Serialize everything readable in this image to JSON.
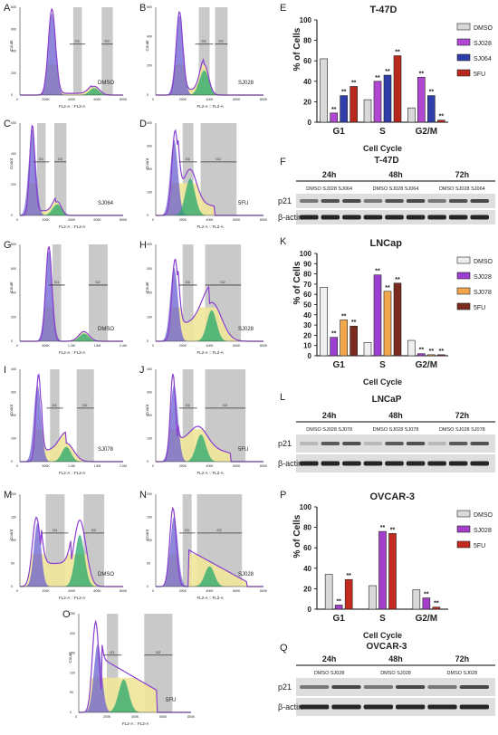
{
  "panels": {
    "A": {
      "letter": "A",
      "sample": "DMSO",
      "xlabel": "FL2-A :: FL2-A",
      "ylabel": "Count",
      "gate1": "G1",
      "gate2": "G2",
      "xticks": [
        "0",
        "200K",
        "400K",
        "600K",
        "800K"
      ],
      "yticks": [
        "0",
        "200",
        "400",
        "600",
        "800"
      ]
    },
    "B": {
      "letter": "B",
      "sample": "SJ028",
      "xlabel": "FL2-A :: FL2-A",
      "ylabel": "Count",
      "gate1": "G1",
      "gate2": "G2",
      "xticks": [
        "0",
        "200K",
        "400K",
        "600K",
        "800K"
      ],
      "yticks": [
        "0",
        "200",
        "400",
        "600"
      ]
    },
    "C": {
      "letter": "C",
      "sample": "SJ064",
      "xlabel": "FL2-A :: FL2-A",
      "ylabel": "Count",
      "gate1": "G1",
      "gate2": "G2",
      "xticks": [
        "0",
        "200K",
        "400K",
        "600K",
        "800K"
      ],
      "yticks": [
        "0",
        "200",
        "400",
        "600"
      ]
    },
    "D": {
      "letter": "D",
      "sample": "5FU",
      "xlabel": "FL2-A :: FL2-A",
      "ylabel": "Count",
      "gate1": "G1",
      "gate2": "G2",
      "xticks": [
        "0",
        "200K",
        "400K",
        "600K",
        "800K"
      ],
      "yticks": [
        "0",
        "100",
        "200",
        "300",
        "400"
      ]
    },
    "G": {
      "letter": "G",
      "sample": "DMSO",
      "xlabel": "FL2-A :: FL2-A",
      "ylabel": "Count",
      "gate1": "G1",
      "gate2": "G2",
      "xticks": [
        "0",
        "600K",
        "1.2M",
        "1.8M",
        "2.4M"
      ],
      "yticks": [
        "0",
        "200",
        "400",
        "600",
        "800"
      ]
    },
    "H": {
      "letter": "H",
      "sample": "SJ028",
      "xlabel": "FL2-A :: FL2-A",
      "ylabel": "Count",
      "gate1": "G1",
      "gate2": "G2",
      "xticks": [
        "0",
        "200K",
        "400K",
        "600K",
        "800K"
      ],
      "yticks": [
        "0",
        "100",
        "200",
        "300",
        "400"
      ]
    },
    "I": {
      "letter": "I",
      "sample": "SJ078",
      "xlabel": "FL2-A :: FL2-A",
      "ylabel": "Count",
      "gate1": "G1",
      "gate2": "G2",
      "xticks": [
        "0",
        "500K",
        "1.0M",
        "1.5M",
        "2.0M"
      ],
      "yticks": [
        "0",
        "100",
        "200",
        "300",
        "400"
      ]
    },
    "J": {
      "letter": "J",
      "sample": "5FU",
      "xlabel": "FL2-A :: FL2-A",
      "ylabel": "Count",
      "gate1": "G1",
      "gate2": "G2",
      "xticks": [
        "0",
        "200K",
        "400K",
        "600K",
        "800K"
      ],
      "yticks": [
        "0",
        "100",
        "200",
        "300",
        "400"
      ]
    },
    "M": {
      "letter": "M",
      "sample": "DMSO",
      "xlabel": "FL2-A :: FL2-A",
      "ylabel": "Count",
      "gate1": "G1",
      "gate2": "G2",
      "xticks": [
        "0",
        "200K",
        "400K",
        "600K",
        "800K"
      ],
      "yticks": [
        "0",
        "50",
        "100",
        "150",
        "200"
      ]
    },
    "N": {
      "letter": "N",
      "sample": "SJ028",
      "xlabel": "FL2-A :: FL2-A",
      "ylabel": "Count",
      "gate1": "G1",
      "gate2": "G2",
      "xticks": [
        "0",
        "200K",
        "400K",
        "600K",
        "800K"
      ],
      "yticks": [
        "0",
        "50",
        "100",
        "150",
        "200"
      ]
    },
    "O": {
      "letter": "O",
      "sample": "5FU",
      "xlabel": "FL2-A :: FL2-A",
      "ylabel": "Count",
      "gate1": "G1",
      "gate2": "G2",
      "xticks": [
        "0",
        "200K",
        "400K",
        "600K",
        "800K"
      ],
      "yticks": [
        "0",
        "50",
        "100",
        "150",
        "200",
        "250"
      ]
    }
  },
  "westerns": {
    "F": {
      "letter": "F",
      "title": "T-47D",
      "times": [
        "24h",
        "48h",
        "72h"
      ],
      "subs": [
        "DMSO SJ028 SJ064",
        "DMSO SJ028 SJ064",
        "DMSO SJ028 SJ064"
      ],
      "rows": [
        "p21",
        "β-actin"
      ]
    },
    "L": {
      "letter": "L",
      "title": "LNCaP",
      "times": [
        "24h",
        "48h",
        "72h"
      ],
      "subs": [
        "DMSO SJ028 SJ078",
        "DMSO SJ028 SJ078",
        "DMSO SJ028 SJ078"
      ],
      "rows": [
        "p21",
        "β-actin"
      ]
    },
    "Q": {
      "letter": "Q",
      "title": "OVCAR-3",
      "times": [
        "24h",
        "48h",
        "72h"
      ],
      "subs": [
        "DMSO SJ028",
        "DMSO SJ028",
        "DMSO SJ028"
      ],
      "rows": [
        "p21",
        "β-actin"
      ]
    }
  },
  "chart_data": [
    {
      "panel": "E",
      "type": "bar",
      "title": "T-47D",
      "xlabel": "Cell Cycle",
      "ylabel": "% of Cells",
      "ylim": [
        0,
        100
      ],
      "yticks": [
        0,
        20,
        40,
        60,
        80,
        100
      ],
      "categories": [
        "G1",
        "S",
        "G2/M"
      ],
      "series": [
        {
          "name": "DMSO",
          "color": "#d9d9d9",
          "values": [
            62,
            22,
            14
          ],
          "sig": [
            false,
            false,
            false
          ]
        },
        {
          "name": "SJ028",
          "color": "#b148d2",
          "values": [
            9,
            40,
            44
          ],
          "sig": [
            true,
            true,
            true
          ]
        },
        {
          "name": "SJ064",
          "color": "#2f3ea8",
          "values": [
            26,
            46,
            26
          ],
          "sig": [
            true,
            true,
            true
          ]
        },
        {
          "name": "5FU",
          "color": "#b8281c",
          "values": [
            35,
            65,
            2
          ],
          "sig": [
            true,
            true,
            true
          ]
        }
      ],
      "marker": "**"
    },
    {
      "panel": "K",
      "type": "bar",
      "title": "LNCap",
      "xlabel": "Cell Cycle",
      "ylabel": "% of Cells",
      "ylim": [
        0,
        100
      ],
      "yticks": [
        0,
        10,
        20,
        30,
        40,
        50,
        60,
        70,
        80,
        90,
        100
      ],
      "categories": [
        "G1",
        "S",
        "G2/M"
      ],
      "series": [
        {
          "name": "DMSO",
          "color": "#f0f0f0",
          "values": [
            67,
            13,
            15
          ],
          "sig": [
            false,
            false,
            false
          ]
        },
        {
          "name": "SJ028",
          "color": "#9b3fd1",
          "values": [
            18,
            79,
            2
          ],
          "sig": [
            true,
            true,
            true
          ]
        },
        {
          "name": "SJ078",
          "color": "#f2a74a",
          "values": [
            35,
            63,
            1
          ],
          "sig": [
            true,
            true,
            true
          ]
        },
        {
          "name": "5FU",
          "color": "#7b2a1e",
          "values": [
            29,
            71,
            1
          ],
          "sig": [
            true,
            true,
            true
          ]
        }
      ],
      "marker": "**"
    },
    {
      "panel": "P",
      "type": "bar",
      "title": "OVCAR-3",
      "xlabel": "Cell Cycle",
      "ylabel": "% of Cells",
      "ylim": [
        0,
        100
      ],
      "yticks": [
        0,
        20,
        40,
        60,
        80,
        100
      ],
      "categories": [
        "G1",
        "S",
        "G2/M"
      ],
      "series": [
        {
          "name": "DMSO",
          "color": "#d9d9d9",
          "values": [
            34,
            23,
            19
          ],
          "sig": [
            false,
            false,
            false
          ]
        },
        {
          "name": "SJ028",
          "color": "#a33fc9",
          "values": [
            4,
            76,
            11
          ],
          "sig": [
            true,
            true,
            true
          ]
        },
        {
          "name": "5FU",
          "color": "#c42a1e",
          "values": [
            29,
            74,
            2
          ],
          "sig": [
            true,
            true,
            true
          ]
        }
      ],
      "marker": "**"
    }
  ]
}
